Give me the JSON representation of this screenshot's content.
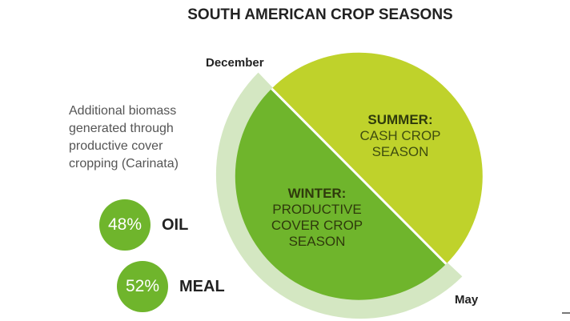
{
  "title": "SOUTH AMERICAN CROP SEASONS",
  "note_lines": [
    "Additional biomass",
    "generated through",
    "productive cover",
    "cropping (Carinata)"
  ],
  "stats": {
    "oil": {
      "percent": "48%",
      "label": "OIL"
    },
    "meal": {
      "percent": "52%",
      "label": "MEAL"
    }
  },
  "months": {
    "start": "December",
    "end": "May"
  },
  "seasons": {
    "summer": {
      "head": "SUMMER:",
      "lines": [
        "CASH CROP",
        "SEASON"
      ]
    },
    "winter": {
      "head": "WINTER:",
      "lines": [
        "PRODUCTIVE",
        "COVER CROP",
        "SEASON"
      ]
    }
  },
  "colors": {
    "summer": "#bfd22b",
    "winter": "#6fb52c",
    "band": "#d4e7c2",
    "stat_circle": "#6fb52c"
  }
}
